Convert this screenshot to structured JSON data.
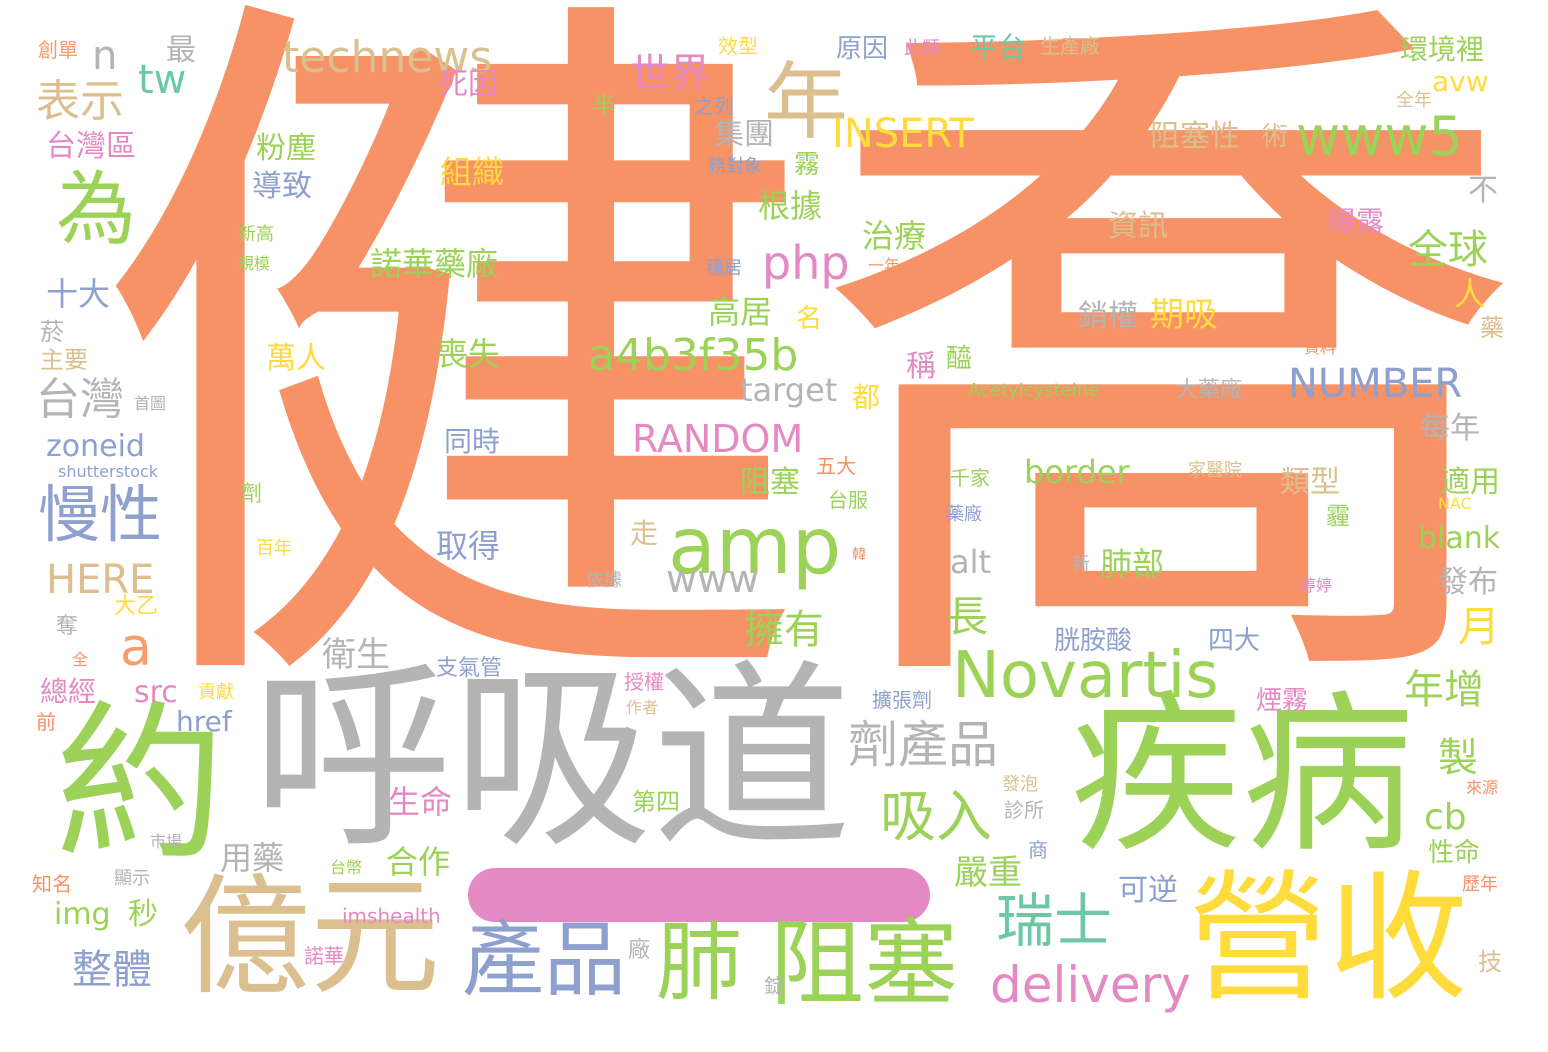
{
  "palette": {
    "salmon": "#f79166",
    "green": "#9bd257",
    "gray": "#b4b4b4",
    "tan": "#dbbf8e",
    "yellow": "#ffdb3c",
    "blue": "#8ea0ce",
    "pink": "#e589c4",
    "teal": "#6cc8a4",
    "orange": "#f89c6c"
  },
  "words": [
    "健",
    "喬",
    "呼吸道",
    "約",
    "疾病",
    "億元",
    "營收",
    "產品",
    "肺",
    "阻塞",
    "amp",
    "為",
    "年",
    "Novartis",
    "慢性",
    "www5",
    "technews",
    "a4b3f35b",
    "瑞士",
    "吸入",
    "delivery",
    "劑產品",
    "php",
    "RANDOM",
    "NUMBER",
    "INSERT",
    "世界",
    "全球",
    "台灣",
    "HERE",
    "表示",
    "整體",
    "www",
    "擁有",
    "a",
    "tw",
    "n",
    "月",
    "年增",
    "製",
    "cb",
    "zoneid",
    "target",
    "期吸",
    "銷權",
    "肺部",
    "border",
    "alt",
    "嚴重",
    "合作",
    "取得",
    "生命",
    "用藥",
    "衛生",
    "長",
    "喪失",
    "萬人",
    "高居",
    "治療",
    "諾華藥廠",
    "根據",
    "組織",
    "粉塵",
    "導致",
    "十大",
    "台灣區",
    "死因",
    "集團",
    "資訊",
    "阻塞性",
    "環境裡",
    "avw",
    "平台",
    "原因",
    "最",
    "創單",
    "效型",
    "生產廠",
    "之列",
    "全年",
    "術",
    "曝露",
    "不",
    "人",
    "藥",
    "資料",
    "醯",
    "稱",
    "都",
    "大藥廠",
    "每年",
    "適用",
    "類型",
    "blank",
    "發布",
    "總經",
    "src",
    "img",
    "秒",
    "href",
    "前",
    "知名",
    "顯示",
    "市場",
    "台幣",
    "imshealth",
    "諾華",
    "廠",
    "錠",
    "技",
    "歷年",
    "來源",
    "第四",
    "診所",
    "發泡",
    "商",
    "擴張劑",
    "作者",
    "授權",
    "貢獻",
    "支氣管",
    "依據",
    "胱胺酸",
    "四大",
    "煙霧",
    "性命",
    "可逆",
    "Acetylcysteine",
    "首圖",
    "shutterstock",
    "千家",
    "台服",
    "藥廠",
    "劑",
    "百年",
    "大乙",
    "奪",
    "全",
    "五大",
    "走",
    "阻塞",
    "同時",
    "韓",
    "新",
    "NAC",
    "家醫院",
    "婷婷",
    "霧",
    "霾",
    "務對象",
    "新高",
    "規模",
    "穩居",
    "一年",
    "名",
    "半",
    "此類",
    "菸",
    "主要"
  ]
}
